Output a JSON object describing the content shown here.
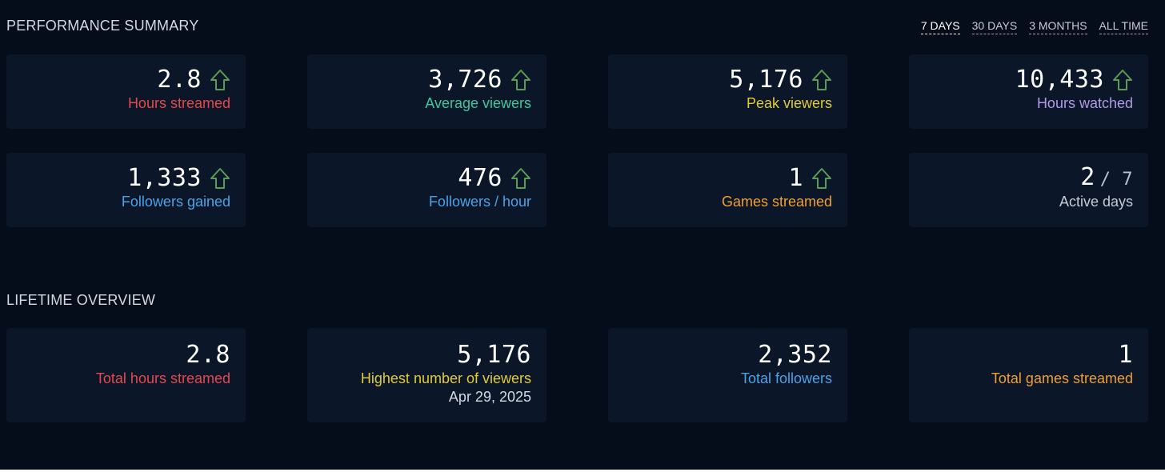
{
  "performance": {
    "title": "PERFORMANCE SUMMARY",
    "ranges": [
      "7 DAYS",
      "30 DAYS",
      "3 MONTHS",
      "ALL TIME"
    ],
    "active_range": "7 DAYS",
    "cards": [
      {
        "value": "2.8",
        "label": "Hours streamed",
        "label_color": "#e5484d",
        "trend": "up"
      },
      {
        "value": "3,726",
        "label": "Average viewers",
        "label_color": "#3cc8a0",
        "trend": "up"
      },
      {
        "value": "5,176",
        "label": "Peak viewers",
        "label_color": "#e0cc33",
        "trend": "up"
      },
      {
        "value": "10,433",
        "label": "Hours watched",
        "label_color": "#b39ae6",
        "trend": "up"
      },
      {
        "value": "1,333",
        "label": "Followers gained",
        "label_color": "#4aa3e8",
        "trend": "up"
      },
      {
        "value": "476",
        "label": "Followers / hour",
        "label_color": "#4aa3e8",
        "trend": "up"
      },
      {
        "value": "1",
        "label": "Games streamed",
        "label_color": "#f0a030",
        "trend": "up"
      },
      {
        "value": "2",
        "suffix": "/ 7",
        "label": "Active days",
        "label_color": "#c6ccd6",
        "trend": "none"
      }
    ]
  },
  "lifetime": {
    "title": "LIFETIME OVERVIEW",
    "cards": [
      {
        "value": "2.8",
        "label": "Total hours streamed",
        "label_color": "#e5484d"
      },
      {
        "value": "5,176",
        "label": "Highest number of viewers",
        "sublabel": "Apr 29, 2025",
        "label_color": "#e0cc33"
      },
      {
        "value": "2,352",
        "label": "Total followers",
        "label_color": "#4aa3e8"
      },
      {
        "value": "1",
        "label": "Total games streamed",
        "label_color": "#f0a030"
      }
    ]
  },
  "colors": {
    "background": "#050d1a",
    "card": "#0b1628",
    "trend_up": "#5c9a55"
  },
  "icons": {
    "trend_up": "arrow-up-outline-icon"
  }
}
